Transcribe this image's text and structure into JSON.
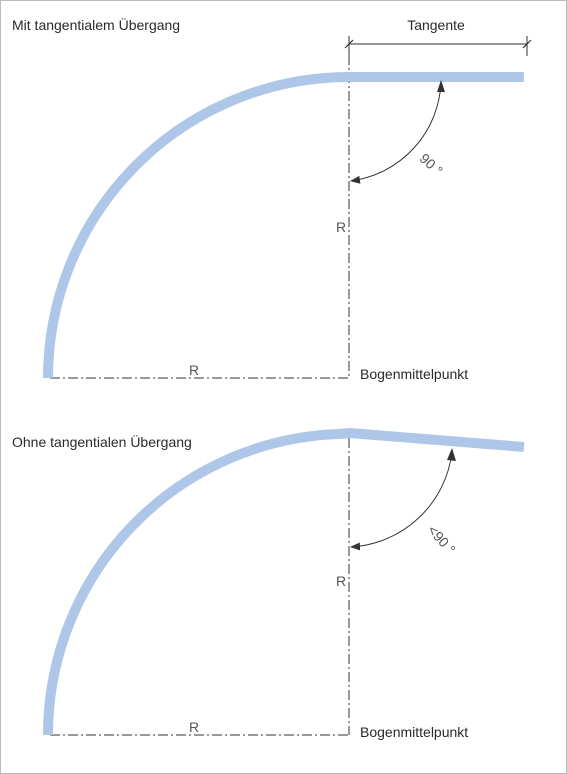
{
  "colors": {
    "pipe": "#aec6e8",
    "line": "#333333",
    "frame": "#bbbbbb"
  },
  "top": {
    "title": "Mit tangentialem Übergang",
    "tangent_label": "Tangente",
    "angle_label": "90 °",
    "radius_label_vertical": "R",
    "radius_label_horizontal": "R",
    "center_label": "Bogenmittelpunkt"
  },
  "bottom": {
    "title": "Ohne tangentialen Übergang",
    "angle_label": "<90 °",
    "radius_label_vertical": "R",
    "radius_label_horizontal": "R",
    "center_label": "Bogenmittelpunkt"
  }
}
